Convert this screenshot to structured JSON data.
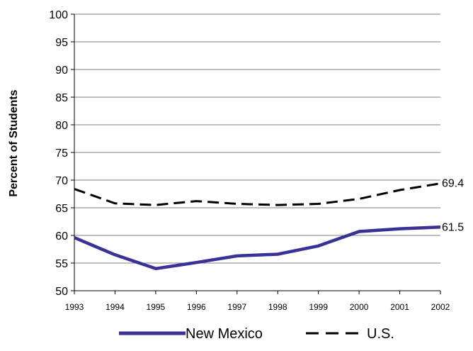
{
  "chart_data": {
    "type": "line",
    "categories": [
      "1993",
      "1994",
      "1995",
      "1996",
      "1997",
      "1998",
      "1999",
      "2000",
      "2001",
      "2002"
    ],
    "series": [
      {
        "name": "New Mexico",
        "color": "#3a3197",
        "style": "solid",
        "values": [
          59.6,
          56.5,
          54.0,
          55.1,
          56.3,
          56.6,
          58.1,
          60.7,
          61.2,
          61.5
        ]
      },
      {
        "name": "U.S.",
        "color": "#000000",
        "style": "dashed",
        "values": [
          68.4,
          65.8,
          65.5,
          66.2,
          65.7,
          65.5,
          65.7,
          66.6,
          68.2,
          69.4
        ]
      }
    ],
    "end_labels": [
      "61.5",
      "69.4"
    ],
    "ylabel": "Percent of Students",
    "ylim": [
      50,
      100
    ],
    "yticks": [
      50,
      55,
      60,
      65,
      70,
      75,
      80,
      85,
      90,
      95,
      100
    ],
    "grid": true,
    "legend": "bottom"
  }
}
